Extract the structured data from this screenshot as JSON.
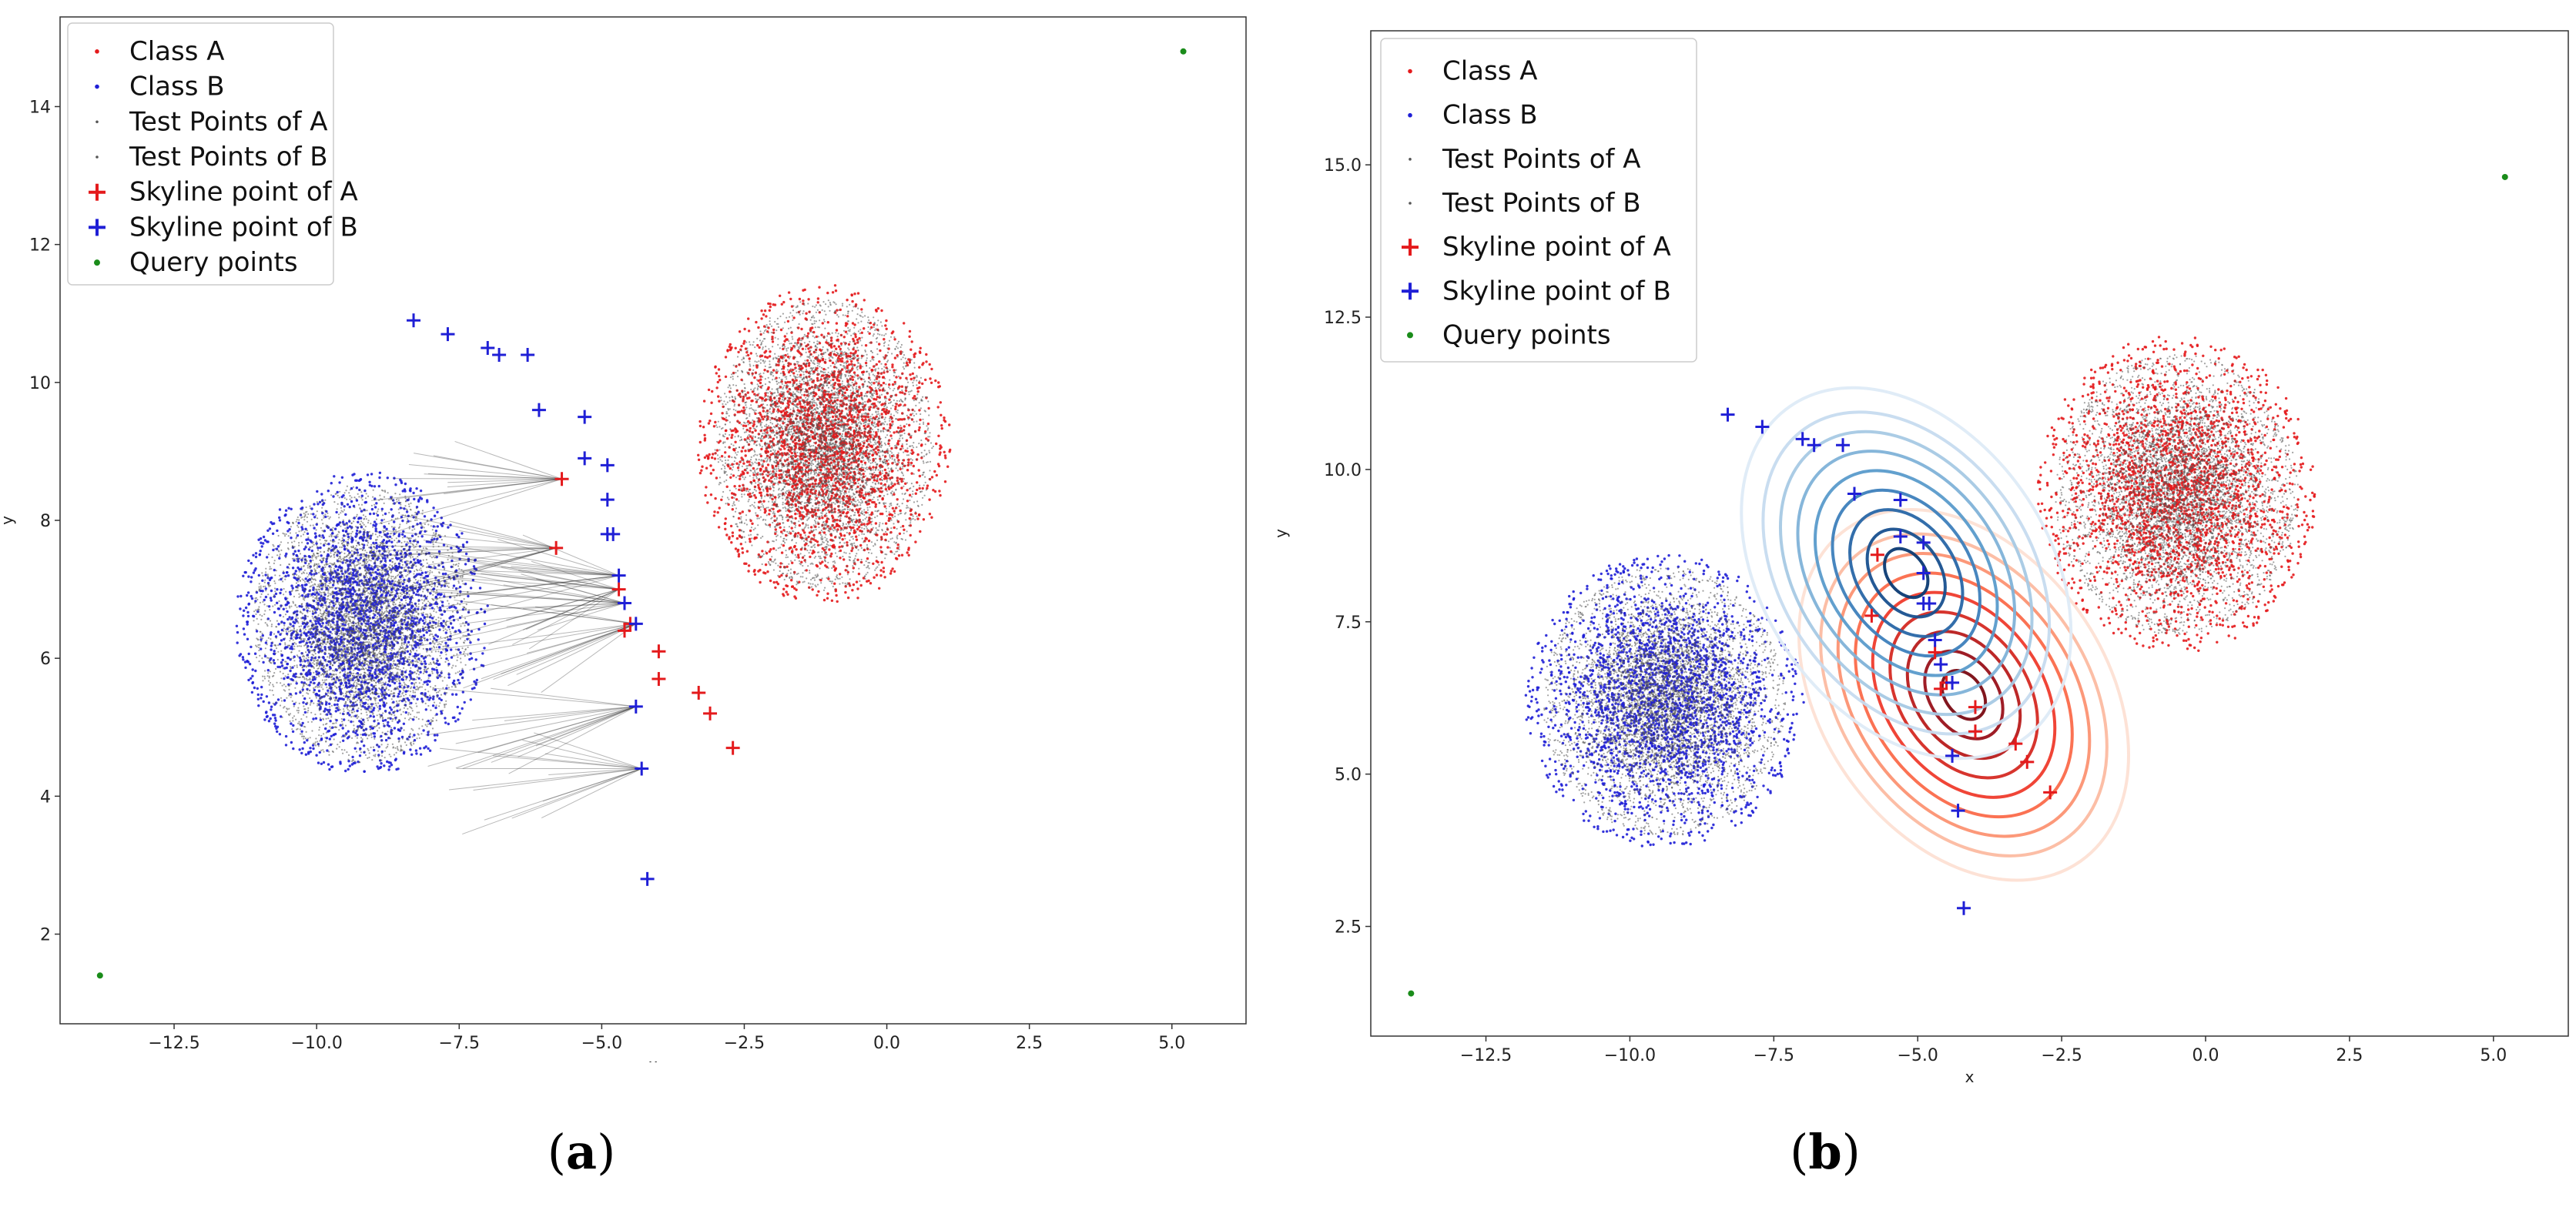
{
  "figure": {
    "panels": [
      {
        "label_open": "(",
        "label_letter": "a",
        "label_close": ")"
      },
      {
        "label_open": "(",
        "label_letter": "b",
        "label_close": ")"
      }
    ]
  },
  "chart_data": [
    {
      "type": "scatter",
      "panel": "a",
      "xlabel": "x",
      "ylabel": "y",
      "xlim": [
        -14.5,
        6.3
      ],
      "ylim": [
        0.7,
        15.3
      ],
      "xticks": [
        -12.5,
        -10.0,
        -7.5,
        -5.0,
        -2.5,
        0.0,
        2.5,
        5.0
      ],
      "yticks": [
        2,
        4,
        6,
        8,
        10,
        12,
        14
      ],
      "xtick_labels": [
        "−12.5",
        "−10.0",
        "−7.5",
        "−5.0",
        "−2.5",
        "0.0",
        "2.5",
        "5.0"
      ],
      "ytick_labels": [
        "2",
        "4",
        "6",
        "8",
        "10",
        "12",
        "14"
      ],
      "grid": false,
      "legend_position": "top-left",
      "legend": [
        "Class A",
        "Class B",
        "Test Points of A",
        "Test Points of B",
        "Skyline point of A",
        "Skyline point of B",
        "Query points"
      ],
      "series": [
        {
          "name": "Class A",
          "distribution": "cluster",
          "center": [
            -1.1,
            9.1
          ],
          "spread": [
            2.2,
            2.3
          ],
          "color": "#e41a1c"
        },
        {
          "name": "Class B",
          "distribution": "cluster",
          "center": [
            -9.2,
            6.5
          ],
          "spread": [
            2.2,
            2.2
          ],
          "color": "#1f1fd6"
        },
        {
          "name": "Test Points of A",
          "distribution": "cluster",
          "center": [
            -1.1,
            9.1
          ],
          "spread": [
            1.9,
            2.1
          ],
          "color": "#555555"
        },
        {
          "name": "Test Points of B",
          "distribution": "cluster",
          "center": [
            -9.2,
            6.5
          ],
          "spread": [
            1.9,
            2.0
          ],
          "color": "#555555"
        },
        {
          "name": "Skyline point of A",
          "color": "#e41a1c",
          "points": [
            [
              -5.7,
              8.6
            ],
            [
              -5.8,
              7.6
            ],
            [
              -4.7,
              7.0
            ],
            [
              -4.5,
              6.5
            ],
            [
              -4.6,
              6.4
            ],
            [
              -4.0,
              6.1
            ],
            [
              -4.0,
              5.7
            ],
            [
              -3.3,
              5.5
            ],
            [
              -3.1,
              5.2
            ],
            [
              -2.7,
              4.7
            ]
          ]
        },
        {
          "name": "Skyline point of B",
          "color": "#1f1fd6",
          "points": [
            [
              -8.3,
              10.9
            ],
            [
              -7.7,
              10.7
            ],
            [
              -7.0,
              10.5
            ],
            [
              -6.8,
              10.4
            ],
            [
              -6.3,
              10.4
            ],
            [
              -6.1,
              9.6
            ],
            [
              -5.3,
              9.5
            ],
            [
              -5.3,
              8.9
            ],
            [
              -4.9,
              8.8
            ],
            [
              -4.9,
              8.3
            ],
            [
              -4.8,
              7.8
            ],
            [
              -4.9,
              7.8
            ],
            [
              -4.7,
              7.2
            ],
            [
              -4.6,
              6.8
            ],
            [
              -4.4,
              6.5
            ],
            [
              -4.4,
              5.3
            ],
            [
              -4.3,
              4.4
            ],
            [
              -4.2,
              2.8
            ]
          ]
        },
        {
          "name": "Query points",
          "color": "#1a8c1a",
          "points": [
            [
              -13.8,
              1.4
            ],
            [
              5.2,
              14.8
            ]
          ]
        }
      ]
    },
    {
      "type": "scatter",
      "panel": "b",
      "xlabel": "x",
      "ylabel": "y",
      "xlim": [
        -14.5,
        6.3
      ],
      "ylim": [
        0.7,
        17.2
      ],
      "xticks": [
        -12.5,
        -10.0,
        -7.5,
        -5.0,
        -2.5,
        0.0,
        2.5,
        5.0
      ],
      "yticks": [
        2.5,
        5.0,
        7.5,
        10.0,
        12.5,
        15.0
      ],
      "xtick_labels": [
        "−12.5",
        "−10.0",
        "−7.5",
        "−5.0",
        "−2.5",
        "0.0",
        "2.5",
        "5.0"
      ],
      "ytick_labels": [
        "2.5",
        "5.0",
        "7.5",
        "10.0",
        "12.5",
        "15.0"
      ],
      "grid": false,
      "legend_position": "top-left",
      "legend": [
        "Class A",
        "Class B",
        "Test Points of A",
        "Test Points of B",
        "Skyline point of A",
        "Skyline point of B",
        "Query points"
      ],
      "contours": [
        {
          "name": "Class A density",
          "color_scale": "reds",
          "center": [
            -4.2,
            6.3
          ],
          "radii": [
            0.5,
            0.9,
            1.3,
            1.7,
            2.1,
            2.5,
            2.9,
            3.3,
            3.8
          ],
          "aspect": 1.35,
          "rotation_deg": -35
        },
        {
          "name": "Class B density",
          "color_scale": "blues",
          "center": [
            -5.2,
            8.3
          ],
          "radii": [
            0.5,
            0.9,
            1.3,
            1.7,
            2.1,
            2.5,
            2.9,
            3.3,
            3.8
          ],
          "aspect": 1.35,
          "rotation_deg": -35
        }
      ],
      "series": [
        {
          "name": "Class A",
          "distribution": "cluster",
          "center": [
            -0.5,
            9.6
          ],
          "spread": [
            2.4,
            2.6
          ],
          "color": "#e41a1c"
        },
        {
          "name": "Class B",
          "distribution": "cluster",
          "center": [
            -9.4,
            6.2
          ],
          "spread": [
            2.4,
            2.4
          ],
          "color": "#1f1fd6"
        },
        {
          "name": "Test Points of A",
          "distribution": "cluster",
          "center": [
            -0.5,
            9.6
          ],
          "spread": [
            2.1,
            2.3
          ],
          "color": "#555555"
        },
        {
          "name": "Test Points of B",
          "distribution": "cluster",
          "center": [
            -9.4,
            6.2
          ],
          "spread": [
            2.1,
            2.2
          ],
          "color": "#555555"
        },
        {
          "name": "Skyline point of A",
          "color": "#e41a1c",
          "points": [
            [
              -5.7,
              8.6
            ],
            [
              -5.8,
              7.6
            ],
            [
              -4.7,
              7.0
            ],
            [
              -4.5,
              6.5
            ],
            [
              -4.6,
              6.4
            ],
            [
              -4.0,
              6.1
            ],
            [
              -4.0,
              5.7
            ],
            [
              -3.3,
              5.5
            ],
            [
              -3.1,
              5.2
            ],
            [
              -2.7,
              4.7
            ]
          ]
        },
        {
          "name": "Skyline point of B",
          "color": "#1f1fd6",
          "points": [
            [
              -8.3,
              10.9
            ],
            [
              -7.7,
              10.7
            ],
            [
              -7.0,
              10.5
            ],
            [
              -6.8,
              10.4
            ],
            [
              -6.3,
              10.4
            ],
            [
              -6.1,
              9.6
            ],
            [
              -5.3,
              9.5
            ],
            [
              -5.3,
              8.9
            ],
            [
              -4.9,
              8.8
            ],
            [
              -4.9,
              8.3
            ],
            [
              -4.8,
              7.8
            ],
            [
              -4.9,
              7.8
            ],
            [
              -4.7,
              7.2
            ],
            [
              -4.6,
              6.8
            ],
            [
              -4.4,
              6.5
            ],
            [
              -4.4,
              5.3
            ],
            [
              -4.3,
              4.4
            ],
            [
              -4.2,
              2.8
            ]
          ]
        },
        {
          "name": "Query points",
          "color": "#1a8c1a",
          "points": [
            [
              -13.8,
              1.4
            ],
            [
              5.2,
              14.8
            ]
          ]
        }
      ]
    }
  ]
}
